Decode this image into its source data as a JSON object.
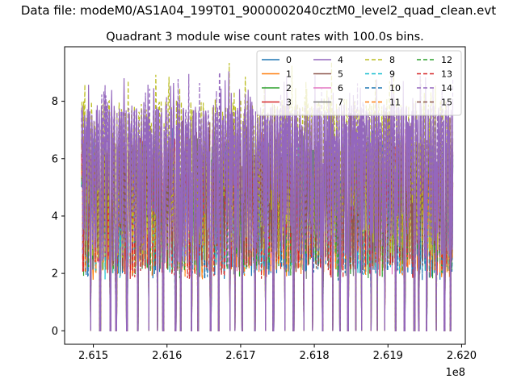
{
  "chart_data": {
    "type": "line",
    "suptitle": "Data file: modeM0/AS1A04_199T01_9000002040cztM0_level2_quad_clean.evt",
    "title": "Quadrant 3 module wise count rates with 100.0s bins.",
    "xlabel": "",
    "ylabel": "",
    "x_offset_label": "1e8",
    "xlim": [
      2.61461,
      2.62005
    ],
    "ylim": [
      -0.47,
      9.9
    ],
    "x_ticks": [
      2.615,
      2.616,
      2.617,
      2.618,
      2.619,
      2.62
    ],
    "x_tick_labels": [
      "2.615",
      "2.616",
      "2.617",
      "2.618",
      "2.619",
      "2.620"
    ],
    "y_ticks": [
      0,
      2,
      4,
      6,
      8
    ],
    "y_tick_labels": [
      "0",
      "2",
      "4",
      "6",
      "8"
    ],
    "x_data_range": [
      2.61484,
      2.61988
    ],
    "grid": false,
    "legend_position": "upper right",
    "legend_columns": 4,
    "series": [
      {
        "name": "0",
        "color": "#1f77b4",
        "linestyle": "solid",
        "typical_peak": 6.1
      },
      {
        "name": "1",
        "color": "#ff7f0e",
        "linestyle": "solid",
        "typical_peak": 6.0
      },
      {
        "name": "2",
        "color": "#2ca02c",
        "linestyle": "solid",
        "typical_peak": 6.2
      },
      {
        "name": "3",
        "color": "#d62728",
        "linestyle": "solid",
        "typical_peak": 6.3
      },
      {
        "name": "4",
        "color": "#9467bd",
        "linestyle": "solid",
        "typical_peak": 7.9
      },
      {
        "name": "5",
        "color": "#8c564b",
        "linestyle": "solid",
        "typical_peak": 6.9
      },
      {
        "name": "6",
        "color": "#e377c2",
        "linestyle": "solid",
        "typical_peak": 6.4
      },
      {
        "name": "7",
        "color": "#7f7f7f",
        "linestyle": "solid",
        "typical_peak": 6.2
      },
      {
        "name": "8",
        "color": "#bcbd22",
        "linestyle": "dashed",
        "typical_peak": 8.1
      },
      {
        "name": "9",
        "color": "#17becf",
        "linestyle": "dashed",
        "typical_peak": 6.0
      },
      {
        "name": "10",
        "color": "#1f77b4",
        "linestyle": "dashed",
        "typical_peak": 6.0
      },
      {
        "name": "11",
        "color": "#ff7f0e",
        "linestyle": "dashed",
        "typical_peak": 6.0
      },
      {
        "name": "12",
        "color": "#2ca02c",
        "linestyle": "dashed",
        "typical_peak": 6.1
      },
      {
        "name": "13",
        "color": "#d62728",
        "linestyle": "dashed",
        "typical_peak": 6.0
      },
      {
        "name": "14",
        "color": "#9467bd",
        "linestyle": "dashed",
        "typical_peak": 7.8
      },
      {
        "name": "15",
        "color": "#8c564b",
        "linestyle": "dashed",
        "typical_peak": 6.8
      }
    ]
  }
}
